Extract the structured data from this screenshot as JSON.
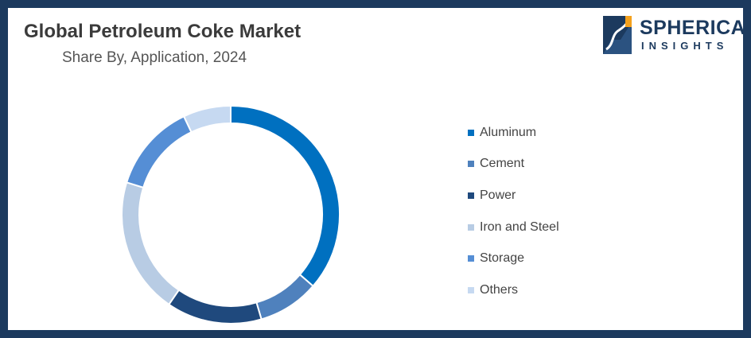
{
  "header": {
    "title": "Global Petroleum Coke Market",
    "subtitle": "Share By, Application, 2024"
  },
  "logo": {
    "word1": "SPHERICAL",
    "word2": "INSIGHTS",
    "colors": {
      "navy": "#1c3a5e",
      "orange": "#f4a11d"
    }
  },
  "chart_data": {
    "type": "pie",
    "subtype": "donut",
    "categories": [
      "Aluminum",
      "Cement",
      "Power",
      "Iron and Steel",
      "Storage",
      "Others"
    ],
    "values": [
      36,
      9,
      14,
      20,
      13,
      7
    ],
    "unit": "%",
    "colors": [
      "#0070c0",
      "#4f81bd",
      "#1f497d",
      "#b8cce4",
      "#558ed5",
      "#c6d9f1"
    ],
    "legend_position": "right",
    "start_angle": "12 o'clock",
    "direction": "clockwise"
  }
}
